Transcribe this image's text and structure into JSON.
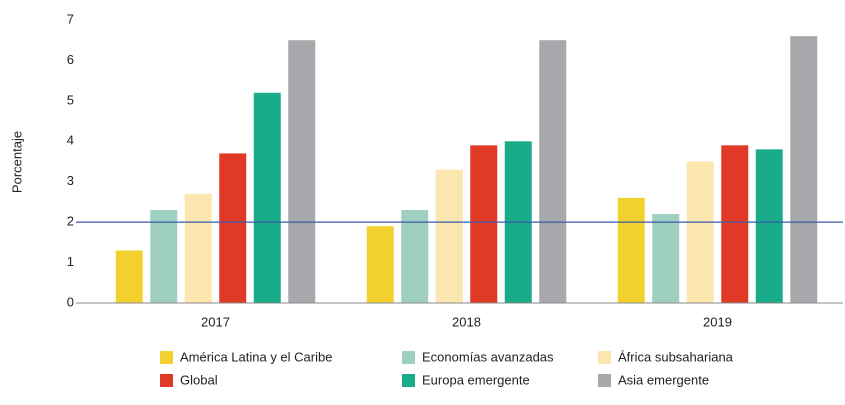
{
  "chart_data": {
    "type": "bar",
    "y_label": "Porcentaje",
    "categories": [
      "2017",
      "2018",
      "2019"
    ],
    "series": [
      {
        "name": "América Latina y el Caribe",
        "color": "#f2d12e",
        "values": [
          1.3,
          1.9,
          2.6
        ]
      },
      {
        "name": "Economías avanzadas",
        "color": "#9ecfc0",
        "values": [
          2.3,
          2.3,
          2.2
        ]
      },
      {
        "name": "África subsahariana",
        "color": "#fbe6b0",
        "values": [
          2.7,
          3.3,
          3.5
        ]
      },
      {
        "name": "Global",
        "color": "#e03a26",
        "values": [
          3.7,
          3.9,
          3.9
        ]
      },
      {
        "name": "Europa emergente",
        "color": "#1aab8a",
        "values": [
          5.2,
          4.0,
          3.8
        ]
      },
      {
        "name": "Asia emergente",
        "color": "#a7a8ab",
        "values": [
          6.5,
          6.5,
          6.6
        ]
      }
    ],
    "reference_line": {
      "value": 2,
      "color": "#3a5bab"
    },
    "ylim": [
      0,
      7
    ],
    "yticks": [
      0,
      1,
      2,
      3,
      4,
      5,
      6,
      7
    ],
    "grid": false
  }
}
